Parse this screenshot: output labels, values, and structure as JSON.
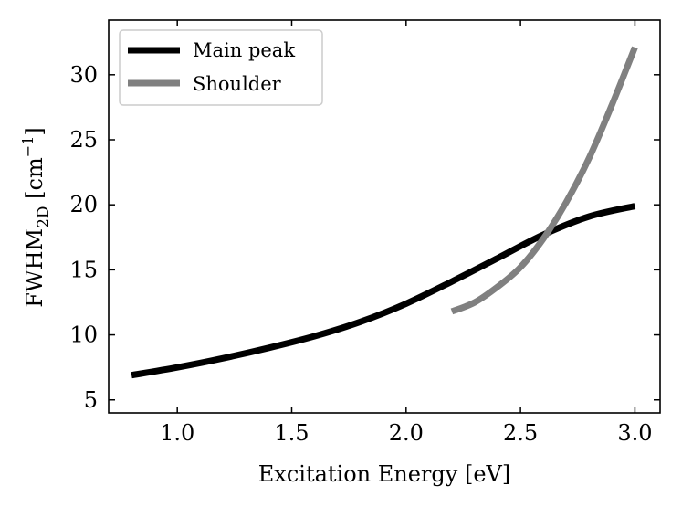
{
  "chart_data": {
    "type": "line",
    "title": "",
    "xlabel": "Excitation Energy [eV]",
    "ylabel": {
      "main": "FWHM",
      "subscript": "2D",
      "unit_open": " [cm",
      "unit_sup": "−1",
      "unit_close": "]"
    },
    "xlim": [
      0.7,
      3.11
    ],
    "ylim": [
      4.0,
      34.2
    ],
    "xticks": [
      1.0,
      1.5,
      2.0,
      2.5,
      3.0
    ],
    "xtick_labels": [
      "1.0",
      "1.5",
      "2.0",
      "2.5",
      "3.0"
    ],
    "yticks": [
      5,
      10,
      15,
      20,
      25,
      30
    ],
    "ytick_labels": [
      "5",
      "10",
      "15",
      "20",
      "25",
      "30"
    ],
    "grid": false,
    "legend_position": "top-left",
    "series": [
      {
        "name": "Main peak",
        "color": "#000000",
        "x": [
          0.8,
          1.0,
          1.2,
          1.4,
          1.6,
          1.8,
          2.0,
          2.2,
          2.4,
          2.6,
          2.8,
          3.0
        ],
        "y": [
          6.9,
          7.5,
          8.2,
          9.0,
          9.9,
          11.0,
          12.4,
          14.1,
          15.9,
          17.7,
          19.1,
          19.9
        ]
      },
      {
        "name": "Shoulder",
        "color": "#808080",
        "x": [
          2.2,
          2.3,
          2.4,
          2.5,
          2.6,
          2.7,
          2.8,
          2.9,
          3.0
        ],
        "y": [
          11.8,
          12.5,
          13.7,
          15.2,
          17.4,
          20.2,
          23.6,
          27.7,
          32.1
        ]
      }
    ]
  }
}
